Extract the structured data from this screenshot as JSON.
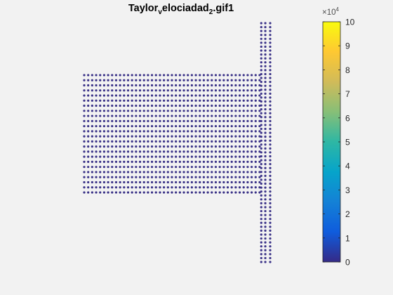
{
  "chart_data": {
    "type": "scatter",
    "title": {
      "part1": "Taylor",
      "sub1": "v",
      "part2": "elociadad",
      "sub2": "2",
      "part3": ".gif1"
    },
    "axes_visible": false,
    "grid": false,
    "marker_color": "#3b3388",
    "series": [
      {
        "shape": "block",
        "x_range": [
          0,
          21.6
        ],
        "y_range": [
          0,
          14.0
        ],
        "rows": 24,
        "cols": 45,
        "value": 0
      },
      {
        "shape": "columns",
        "x_values": [
          21.8,
          22.3,
          22.9
        ],
        "y_range": [
          -8.3,
          20.2
        ],
        "rows": 62,
        "value": 0
      }
    ],
    "colorbar": {
      "min": 0,
      "max": 10,
      "multiplier": "×10",
      "multiplier_exponent": "4",
      "ticks": [
        "0",
        "1",
        "2",
        "3",
        "4",
        "5",
        "6",
        "7",
        "8",
        "9",
        "10"
      ],
      "colormap": "parula",
      "stops": [
        "#352a87",
        "#0f5cdd",
        "#1481d6",
        "#06a4ca",
        "#2eb7a4",
        "#87bf77",
        "#d1bb59",
        "#fec832",
        "#f9fb0e"
      ]
    }
  }
}
